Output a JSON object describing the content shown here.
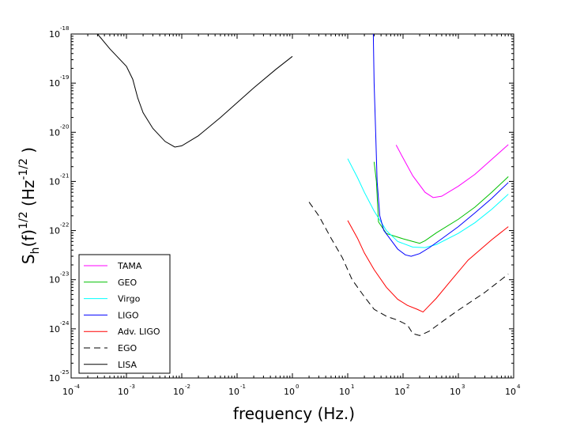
{
  "chart_data": {
    "type": "line",
    "xscale": "log",
    "yscale": "log",
    "xlim": [
      0.0001,
      10000
    ],
    "ylim": [
      1e-25,
      1e-18
    ],
    "xlabel": "frequency (Hz.)",
    "ylabel": {
      "parts": [
        "S",
        "h",
        "(f)",
        "1/2",
        " (Hz",
        "-1/2",
        " )"
      ]
    },
    "x_ticks": [
      {
        "value": 0.0001,
        "base": "10",
        "exp": "-4"
      },
      {
        "value": 0.001,
        "base": "10",
        "exp": "-3"
      },
      {
        "value": 0.01,
        "base": "10",
        "exp": "-2"
      },
      {
        "value": 0.1,
        "base": "10",
        "exp": "-1"
      },
      {
        "value": 1,
        "base": "10",
        "exp": "0"
      },
      {
        "value": 10,
        "base": "10",
        "exp": "1"
      },
      {
        "value": 100,
        "base": "10",
        "exp": "2"
      },
      {
        "value": 1000,
        "base": "10",
        "exp": "3"
      },
      {
        "value": 10000,
        "base": "10",
        "exp": "4"
      }
    ],
    "y_ticks": [
      {
        "value": 1e-25,
        "base": "10",
        "exp": "-25"
      },
      {
        "value": 1e-24,
        "base": "10",
        "exp": "-24"
      },
      {
        "value": 1e-23,
        "base": "10",
        "exp": "-23"
      },
      {
        "value": 1e-22,
        "base": "10",
        "exp": "-22"
      },
      {
        "value": 1e-21,
        "base": "10",
        "exp": "-21"
      },
      {
        "value": 1e-20,
        "base": "10",
        "exp": "-20"
      },
      {
        "value": 1e-19,
        "base": "10",
        "exp": "-19"
      },
      {
        "value": 1e-18,
        "base": "10",
        "exp": "-18"
      }
    ],
    "legend_position": "bottom-left",
    "series": [
      {
        "name": "TAMA",
        "color": "#ff00ff",
        "dash": "none",
        "points": [
          [
            75,
            5.5e-21
          ],
          [
            100,
            3e-21
          ],
          [
            150,
            1.3e-21
          ],
          [
            250,
            6e-22
          ],
          [
            350,
            4.7e-22
          ],
          [
            500,
            5e-22
          ],
          [
            1000,
            8e-22
          ],
          [
            2000,
            1.4e-21
          ],
          [
            4000,
            2.8e-21
          ],
          [
            8000,
            5.6e-21
          ]
        ]
      },
      {
        "name": "GEO",
        "color": "#00c000",
        "dash": "none",
        "points": [
          [
            30,
            2.5e-21
          ],
          [
            33,
            1e-21
          ],
          [
            36,
            1.5e-22
          ],
          [
            50,
            8.7e-23
          ],
          [
            100,
            6.8e-23
          ],
          [
            150,
            6e-23
          ],
          [
            200,
            5.5e-23
          ],
          [
            250,
            6.2e-23
          ],
          [
            400,
            9e-23
          ],
          [
            1000,
            1.7e-22
          ],
          [
            2000,
            3e-22
          ],
          [
            4000,
            6e-22
          ],
          [
            8000,
            1.25e-21
          ]
        ]
      },
      {
        "name": "Virgo",
        "color": "#00ffff",
        "dash": "none",
        "points": [
          [
            10,
            2.9e-21
          ],
          [
            15,
            1.2e-21
          ],
          [
            20,
            6e-22
          ],
          [
            30,
            2.5e-22
          ],
          [
            50,
            1e-22
          ],
          [
            80,
            6e-23
          ],
          [
            150,
            4.6e-23
          ],
          [
            250,
            4.5e-23
          ],
          [
            400,
            5.2e-23
          ],
          [
            1000,
            8.8e-23
          ],
          [
            2000,
            1.45e-22
          ],
          [
            4000,
            2.7e-22
          ],
          [
            8000,
            5.5e-22
          ]
        ]
      },
      {
        "name": "LIGO",
        "color": "#0000ff",
        "dash": "none",
        "points": [
          [
            29,
            1e-18
          ],
          [
            30,
            1e-19
          ],
          [
            32,
            1e-20
          ],
          [
            34,
            1e-21
          ],
          [
            38,
            2e-22
          ],
          [
            45,
            1e-22
          ],
          [
            60,
            6.5e-23
          ],
          [
            80,
            4.2e-23
          ],
          [
            110,
            3.2e-23
          ],
          [
            140,
            3e-23
          ],
          [
            200,
            3.4e-23
          ],
          [
            300,
            4.5e-23
          ],
          [
            500,
            6.8e-23
          ],
          [
            1000,
            1.2e-22
          ],
          [
            2000,
            2.3e-22
          ],
          [
            4000,
            4.5e-22
          ],
          [
            8000,
            9.5e-22
          ]
        ]
      },
      {
        "name": "Adv. LIGO",
        "color": "#ff0000",
        "dash": "none",
        "points": [
          [
            10,
            1.6e-22
          ],
          [
            15,
            7e-23
          ],
          [
            20,
            3.5e-23
          ],
          [
            30,
            1.6e-23
          ],
          [
            50,
            7e-24
          ],
          [
            80,
            4e-24
          ],
          [
            120,
            3e-24
          ],
          [
            180,
            2.5e-24
          ],
          [
            230,
            2.2e-24
          ],
          [
            300,
            3e-24
          ],
          [
            400,
            4.2e-24
          ],
          [
            700,
            9e-24
          ],
          [
            1500,
            2.5e-23
          ],
          [
            4000,
            6.5e-23
          ],
          [
            8000,
            1.2e-22
          ]
        ]
      },
      {
        "name": "EGO",
        "color": "#000000",
        "dash": "8,5",
        "points": [
          [
            2,
            3.8e-22
          ],
          [
            3,
            2e-22
          ],
          [
            5,
            7e-23
          ],
          [
            8,
            2.8e-23
          ],
          [
            12,
            1e-23
          ],
          [
            20,
            4.5e-24
          ],
          [
            30,
            2.5e-24
          ],
          [
            50,
            1.8e-24
          ],
          [
            80,
            1.5e-24
          ],
          [
            120,
            1.2e-24
          ],
          [
            150,
            8e-25
          ],
          [
            200,
            7.3e-25
          ],
          [
            300,
            9e-25
          ],
          [
            600,
            1.6e-24
          ],
          [
            1000,
            2.4e-24
          ],
          [
            3000,
            5.5e-24
          ],
          [
            8000,
            1.3e-23
          ]
        ]
      },
      {
        "name": "LISA",
        "color": "#000000",
        "dash": "none",
        "points": [
          [
            0.0003,
            1e-18
          ],
          [
            0.0005,
            5e-19
          ],
          [
            0.001,
            2.2e-19
          ],
          [
            0.0013,
            1.2e-19
          ],
          [
            0.0016,
            5e-20
          ],
          [
            0.002,
            2.5e-20
          ],
          [
            0.003,
            1.2e-20
          ],
          [
            0.005,
            6.5e-21
          ],
          [
            0.0075,
            5e-21
          ],
          [
            0.01,
            5.3e-21
          ],
          [
            0.02,
            8.5e-21
          ],
          [
            0.05,
            2e-20
          ],
          [
            0.1,
            4e-20
          ],
          [
            0.2,
            8e-20
          ],
          [
            0.5,
            1.9e-19
          ],
          [
            1,
            3.5e-19
          ]
        ]
      }
    ]
  }
}
